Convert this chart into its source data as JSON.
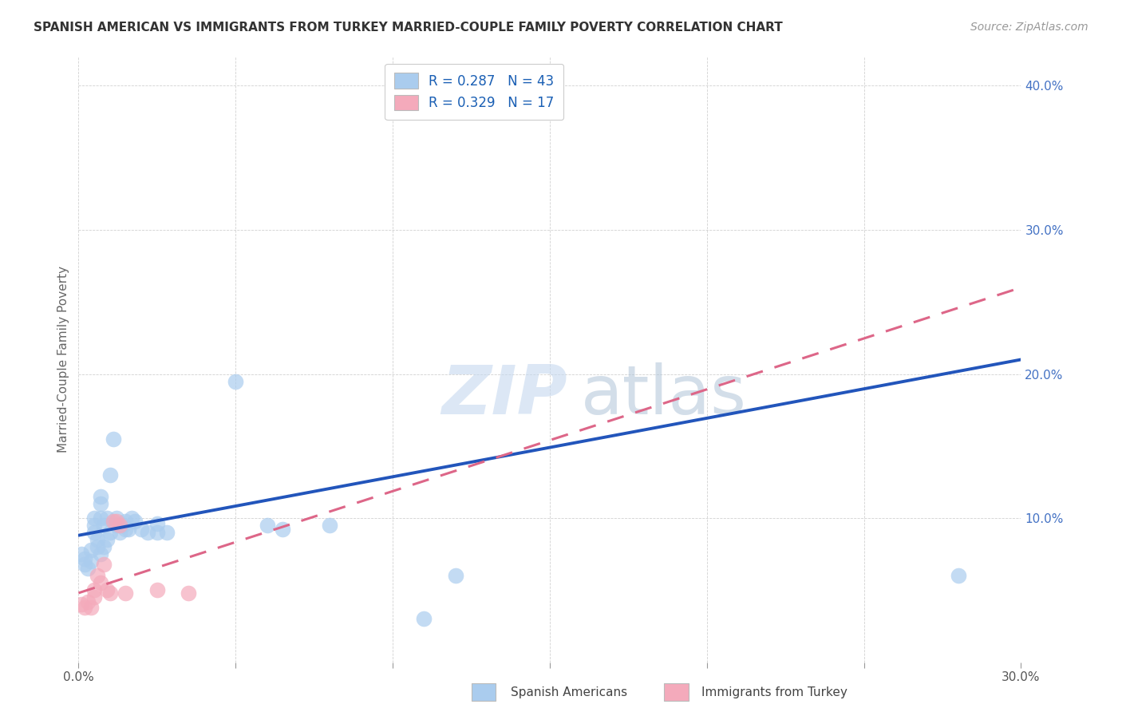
{
  "title": "SPANISH AMERICAN VS IMMIGRANTS FROM TURKEY MARRIED-COUPLE FAMILY POVERTY CORRELATION CHART",
  "source": "Source: ZipAtlas.com",
  "ylabel": "Married-Couple Family Poverty",
  "xmin": 0.0,
  "xmax": 0.3,
  "ymin": 0.0,
  "ymax": 0.42,
  "xticks": [
    0.0,
    0.05,
    0.1,
    0.15,
    0.2,
    0.25,
    0.3
  ],
  "yticks": [
    0.0,
    0.1,
    0.2,
    0.3,
    0.4
  ],
  "blue_R": 0.287,
  "blue_N": 43,
  "pink_R": 0.329,
  "pink_N": 17,
  "blue_color": "#aaccee",
  "pink_color": "#f4aabb",
  "trend_blue": "#2255bb",
  "trend_pink": "#dd6688",
  "blue_trend_x": [
    0.0,
    0.3
  ],
  "blue_trend_y": [
    0.088,
    0.21
  ],
  "pink_trend_x": [
    0.0,
    0.3
  ],
  "pink_trend_y": [
    0.048,
    0.26
  ],
  "blue_scatter": [
    [
      0.001,
      0.075
    ],
    [
      0.002,
      0.072
    ],
    [
      0.002,
      0.068
    ],
    [
      0.003,
      0.065
    ],
    [
      0.004,
      0.07
    ],
    [
      0.004,
      0.078
    ],
    [
      0.005,
      0.09
    ],
    [
      0.005,
      0.095
    ],
    [
      0.005,
      0.1
    ],
    [
      0.006,
      0.08
    ],
    [
      0.006,
      0.085
    ],
    [
      0.007,
      0.075
    ],
    [
      0.007,
      0.1
    ],
    [
      0.007,
      0.11
    ],
    [
      0.007,
      0.115
    ],
    [
      0.008,
      0.08
    ],
    [
      0.008,
      0.095
    ],
    [
      0.009,
      0.085
    ],
    [
      0.009,
      0.1
    ],
    [
      0.01,
      0.13
    ],
    [
      0.01,
      0.09
    ],
    [
      0.011,
      0.155
    ],
    [
      0.012,
      0.095
    ],
    [
      0.012,
      0.1
    ],
    [
      0.013,
      0.09
    ],
    [
      0.014,
      0.095
    ],
    [
      0.015,
      0.092
    ],
    [
      0.015,
      0.098
    ],
    [
      0.016,
      0.092
    ],
    [
      0.017,
      0.1
    ],
    [
      0.018,
      0.098
    ],
    [
      0.02,
      0.092
    ],
    [
      0.022,
      0.09
    ],
    [
      0.025,
      0.09
    ],
    [
      0.025,
      0.096
    ],
    [
      0.028,
      0.09
    ],
    [
      0.05,
      0.195
    ],
    [
      0.06,
      0.095
    ],
    [
      0.065,
      0.092
    ],
    [
      0.08,
      0.095
    ],
    [
      0.11,
      0.03
    ],
    [
      0.12,
      0.06
    ],
    [
      0.28,
      0.06
    ]
  ],
  "pink_scatter": [
    [
      0.001,
      0.04
    ],
    [
      0.002,
      0.038
    ],
    [
      0.003,
      0.042
    ],
    [
      0.004,
      0.038
    ],
    [
      0.005,
      0.045
    ],
    [
      0.005,
      0.05
    ],
    [
      0.006,
      0.06
    ],
    [
      0.007,
      0.055
    ],
    [
      0.008,
      0.068
    ],
    [
      0.009,
      0.05
    ],
    [
      0.01,
      0.048
    ],
    [
      0.011,
      0.098
    ],
    [
      0.012,
      0.098
    ],
    [
      0.013,
      0.095
    ],
    [
      0.015,
      0.048
    ],
    [
      0.025,
      0.05
    ],
    [
      0.035,
      0.048
    ]
  ],
  "watermark_zip": "ZIP",
  "watermark_atlas": "atlas"
}
